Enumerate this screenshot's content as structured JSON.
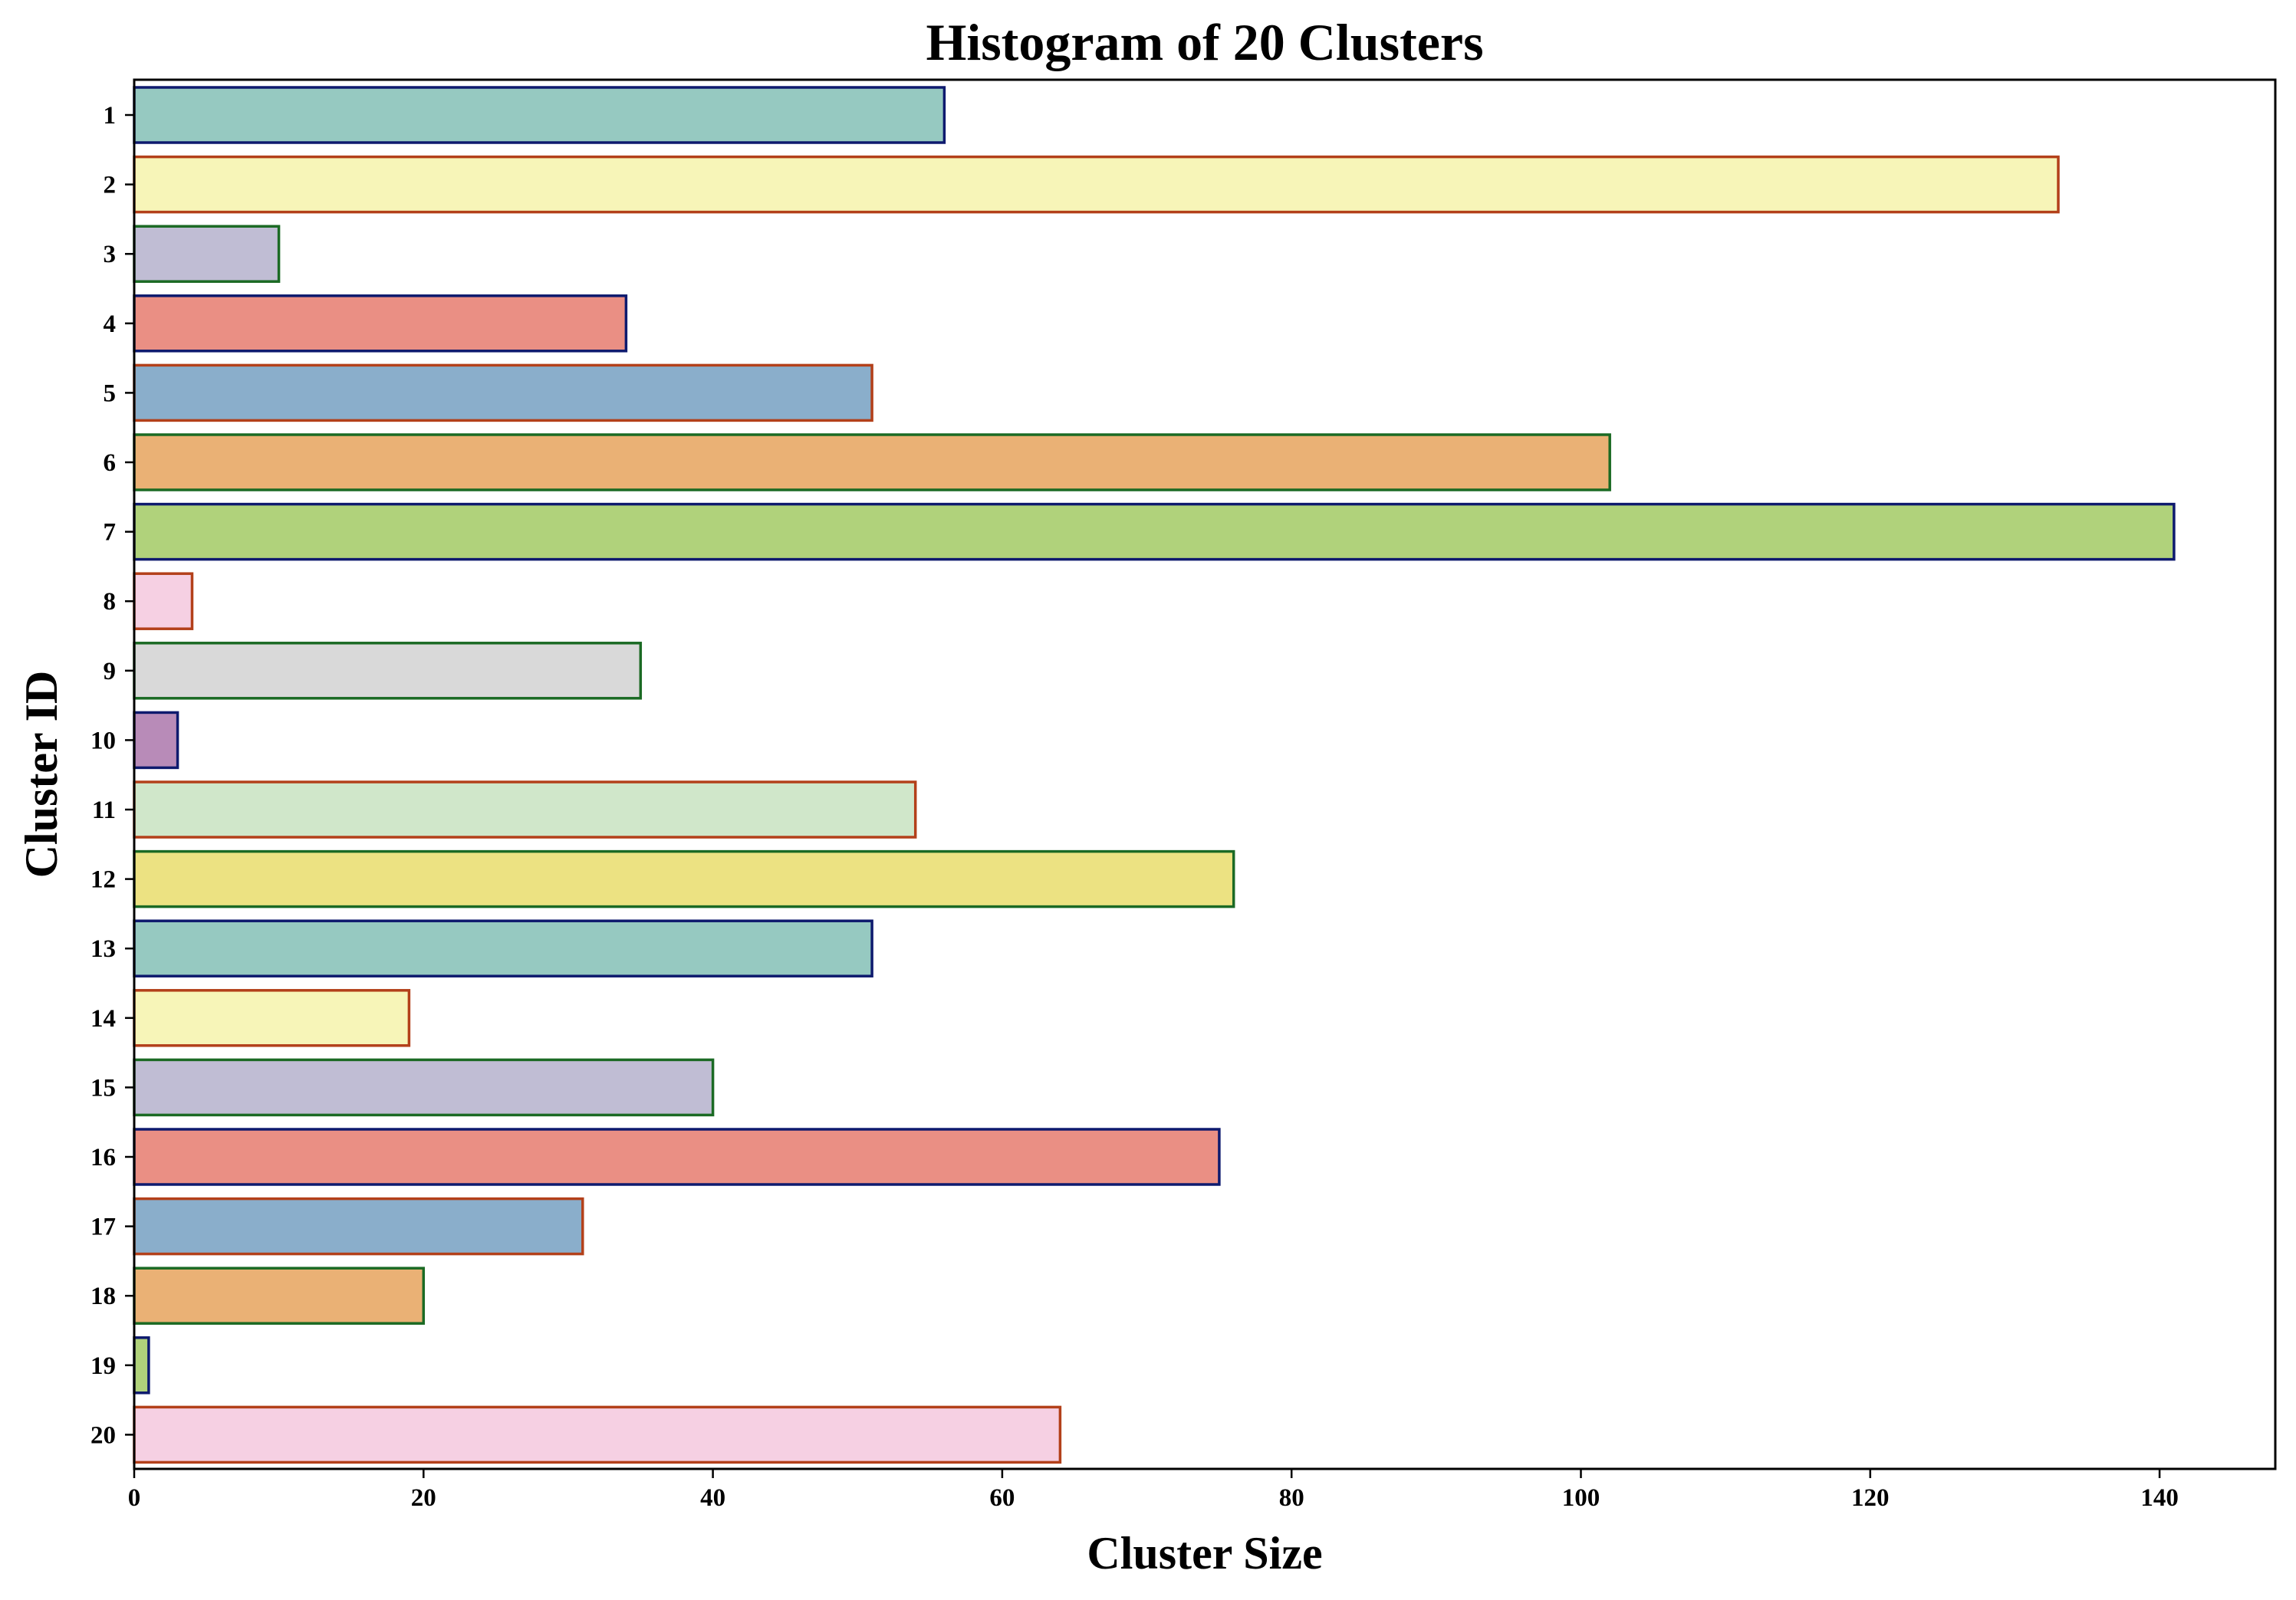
{
  "chart_data": {
    "type": "bar",
    "orientation": "horizontal",
    "title": "Histogram of 20 Clusters",
    "xlabel": "Cluster Size",
    "ylabel": "Cluster ID",
    "xlim": [
      0,
      148
    ],
    "xticks": [
      0,
      20,
      40,
      60,
      80,
      100,
      120,
      140
    ],
    "categories": [
      "1",
      "2",
      "3",
      "4",
      "5",
      "6",
      "7",
      "8",
      "9",
      "10",
      "11",
      "12",
      "13",
      "14",
      "15",
      "16",
      "17",
      "18",
      "19",
      "20"
    ],
    "values": [
      56,
      133,
      10,
      34,
      51,
      102,
      141,
      4,
      35,
      3,
      54,
      76,
      51,
      19,
      40,
      75,
      31,
      20,
      1,
      64
    ],
    "bar_colors": [
      "#96c9c1",
      "#f7f5b8",
      "#c0bdd4",
      "#ea8f84",
      "#8aaecb",
      "#eab175",
      "#b0d27b",
      "#f6d0e3",
      "#d9d9d9",
      "#b88bb8",
      "#d0e7ca",
      "#ece282",
      "#96c9c1",
      "#f7f5b8",
      "#c0bdd4",
      "#ea8f84",
      "#8aaecb",
      "#eab175",
      "#b0d27b",
      "#f6d0e3"
    ],
    "edge_colors": [
      "#0e1a6e",
      "#b3401a",
      "#1b6a24",
      "#0e1a6e",
      "#b3401a",
      "#1b6a24",
      "#0e1a6e",
      "#b3401a",
      "#1b6a24",
      "#0e1a6e",
      "#b3401a",
      "#1b6a24",
      "#0e1a6e",
      "#b3401a",
      "#1b6a24",
      "#0e1a6e",
      "#b3401a",
      "#1b6a24",
      "#0e1a6e",
      "#b3401a"
    ],
    "grid": false,
    "legend": "none"
  }
}
